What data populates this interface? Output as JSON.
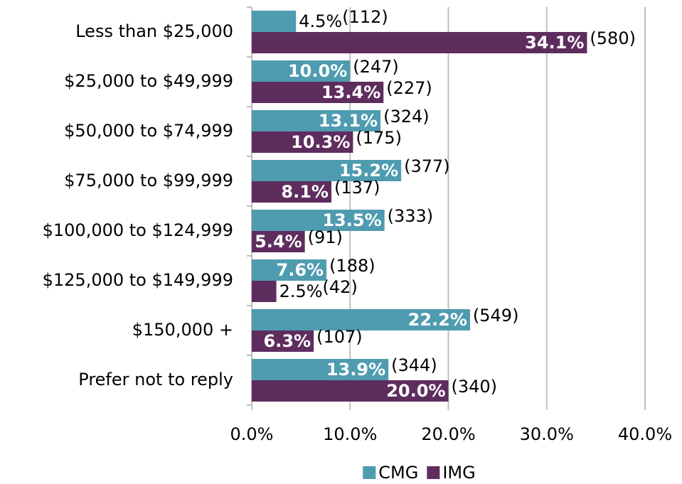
{
  "chart_data": {
    "type": "hbar",
    "categories": [
      "Less than $25,000",
      "$25,000 to $49,999",
      "$50,000 to $74,999",
      "$75,000 to $99,999",
      "$100,000 to $124,999",
      "$125,000 to $149,999",
      "$150,000 +",
      "Prefer not to reply"
    ],
    "series": [
      {
        "name": "CMG",
        "color": "#4f9bb0",
        "values": [
          4.5,
          10.0,
          13.1,
          15.2,
          13.5,
          7.6,
          22.2,
          13.9
        ],
        "value_labels": [
          "4.5%",
          "10.0%",
          "13.1%",
          "15.2%",
          "13.5%",
          "7.6%",
          "22.2%",
          "13.9%"
        ],
        "count_labels": [
          "(112)",
          "(247)",
          "(324)",
          "(377)",
          "(333)",
          "(188)",
          "(549)",
          "(344)"
        ]
      },
      {
        "name": "IMG",
        "color": "#5e2d5e",
        "values": [
          34.1,
          13.4,
          10.3,
          8.1,
          5.4,
          2.5,
          6.3,
          20.0
        ],
        "value_labels": [
          "34.1%",
          "13.4%",
          "10.3%",
          "8.1%",
          "5.4%",
          "2.5%",
          "6.3%",
          "20.0%"
        ],
        "count_labels": [
          "(580)",
          "(227)",
          "(175)",
          "(137)",
          "(91)",
          "(42)",
          "(107)",
          "(340)"
        ]
      }
    ],
    "xlim": [
      0,
      40
    ],
    "xticks": [
      {
        "value": 0,
        "label": "0.0%"
      },
      {
        "value": 10,
        "label": "10.0%"
      },
      {
        "value": 20,
        "label": "20.0%"
      },
      {
        "value": 30,
        "label": "30.0%"
      },
      {
        "value": 40,
        "label": "40.0%"
      }
    ],
    "grid": true,
    "legend": "bottom"
  }
}
